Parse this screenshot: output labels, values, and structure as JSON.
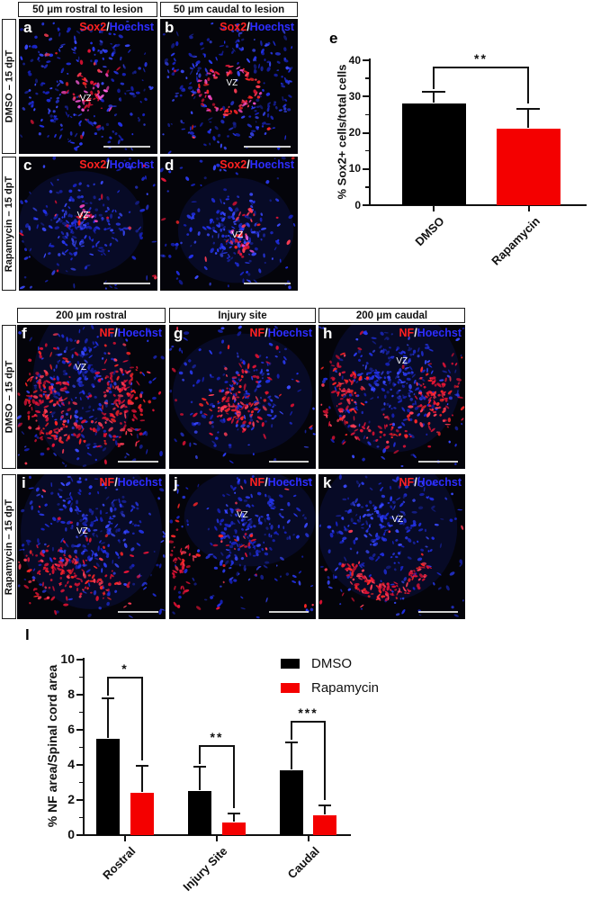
{
  "colors": {
    "bar_red": "#f40000",
    "stain_red": "#ff2121",
    "hoechst_blue": "#2d2dff",
    "slash_white": "#e8e8e8",
    "scalebar": "#cfcfcf",
    "axis": "#111111",
    "panel_bg": "#04040a"
  },
  "micro_sections": [
    {
      "id": "sox2",
      "col_headers": [
        "50 μm rostral to lesion",
        "50 μm caudal to lesion"
      ],
      "row_labels": [
        "DMSO – 15 dpT",
        "Rapamycin – 15 dpT"
      ],
      "stain": {
        "red": "Sox2",
        "sep": "/",
        "blue": "Hoechst"
      },
      "panels": [
        {
          "letter": "a",
          "vz_label": "VZ"
        },
        {
          "letter": "b",
          "vz_label": "VZ"
        },
        {
          "letter": "c",
          "vz_label": "VZ"
        },
        {
          "letter": "d",
          "vz_label": "VZ"
        }
      ]
    },
    {
      "id": "nf",
      "col_headers": [
        "200 μm rostral",
        "Injury site",
        "200 μm caudal"
      ],
      "row_labels": [
        "DMSO – 15 dpT",
        "Rapamycin – 15 dpT"
      ],
      "stain": {
        "red": "NF",
        "sep": "/",
        "blue": "Hoechst"
      },
      "panels": [
        {
          "letter": "f",
          "vz_label": "VZ"
        },
        {
          "letter": "g",
          "vz_label": ""
        },
        {
          "letter": "h",
          "vz_label": "VZ"
        },
        {
          "letter": "i",
          "vz_label": "VZ"
        },
        {
          "letter": "j",
          "vz_label": "VZ"
        },
        {
          "letter": "k",
          "vz_label": "VZ"
        }
      ]
    }
  ],
  "chart_data": [
    {
      "id": "e",
      "panel_label": "e",
      "type": "bar",
      "categories": [
        "DMSO",
        "Rapamycin"
      ],
      "values": [
        28,
        21
      ],
      "errors_up": [
        3.2,
        5.6
      ],
      "bar_colors": [
        "#000000",
        "#f40000"
      ],
      "title": "",
      "xlabel": "",
      "ylabel": "% Sox2+ cells/total cells",
      "ylim": [
        0,
        40
      ],
      "yticks": [
        0,
        10,
        20,
        30,
        40
      ],
      "minor_step": 5,
      "grid": false,
      "significance": [
        {
          "label": "**",
          "a": 0,
          "b": 1
        }
      ]
    },
    {
      "id": "l",
      "panel_label": "l",
      "type": "grouped_bar",
      "categories": [
        "Rostral",
        "Injury Site",
        "Caudal"
      ],
      "series": [
        {
          "name": "DMSO",
          "color": "#000000",
          "values": [
            5.5,
            2.5,
            3.7
          ],
          "errors_up": [
            2.3,
            1.4,
            1.6
          ]
        },
        {
          "name": "Rapamycin",
          "color": "#f40000",
          "values": [
            2.4,
            0.7,
            1.15
          ],
          "errors_up": [
            1.55,
            0.55,
            0.55
          ]
        }
      ],
      "title": "",
      "xlabel": "",
      "ylabel": "% NF area/Spinal cord area",
      "ylim": [
        0,
        10
      ],
      "yticks": [
        0,
        2,
        4,
        6,
        8,
        10
      ],
      "minor_step": 1,
      "grid": false,
      "legend_position": "top-right",
      "significance": [
        {
          "label": "*",
          "group": 0
        },
        {
          "label": "**",
          "group": 1
        },
        {
          "label": "***",
          "group": 2
        }
      ]
    }
  ]
}
